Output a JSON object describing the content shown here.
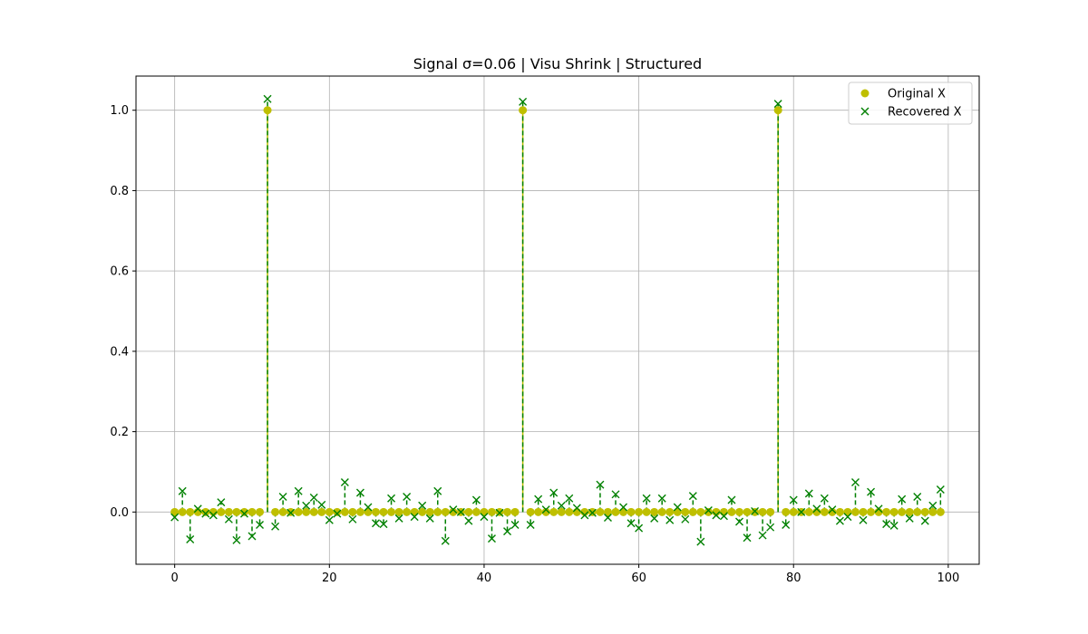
{
  "chart_data": {
    "type": "scatter",
    "title": "Signal σ=0.06 | Visu Shrink | Structured",
    "xlabel": "",
    "ylabel": "",
    "xlim": [
      -5,
      104
    ],
    "ylim": [
      -0.13,
      1.085
    ],
    "x_ticks": [
      0,
      20,
      40,
      60,
      80,
      100
    ],
    "y_ticks": [
      0.0,
      0.2,
      0.4,
      0.6,
      0.8,
      1.0
    ],
    "x_tick_labels": [
      "0",
      "20",
      "40",
      "60",
      "80",
      "100"
    ],
    "y_tick_labels": [
      "0.0",
      "0.2",
      "0.4",
      "0.6",
      "0.8",
      "1.0"
    ],
    "grid": true,
    "legend_position": "top-right",
    "x": [
      0,
      1,
      2,
      3,
      4,
      5,
      6,
      7,
      8,
      9,
      10,
      11,
      12,
      13,
      14,
      15,
      16,
      17,
      18,
      19,
      20,
      21,
      22,
      23,
      24,
      25,
      26,
      27,
      28,
      29,
      30,
      31,
      32,
      33,
      34,
      35,
      36,
      37,
      38,
      39,
      40,
      41,
      42,
      43,
      44,
      45,
      46,
      47,
      48,
      49,
      50,
      51,
      52,
      53,
      54,
      55,
      56,
      57,
      58,
      59,
      60,
      61,
      62,
      63,
      64,
      65,
      66,
      67,
      68,
      69,
      70,
      71,
      72,
      73,
      74,
      75,
      76,
      77,
      78,
      79,
      80,
      81,
      82,
      83,
      84,
      85,
      86,
      87,
      88,
      89,
      90,
      91,
      92,
      93,
      94,
      95,
      96,
      97,
      98,
      99
    ],
    "series": [
      {
        "name": "Original X",
        "color": "#bfbf00",
        "marker": "circle",
        "values": [
          0,
          0,
          0,
          0,
          0,
          0,
          0,
          0,
          0,
          0,
          0,
          0,
          1,
          0,
          0,
          0,
          0,
          0,
          0,
          0,
          0,
          0,
          0,
          0,
          0,
          0,
          0,
          0,
          0,
          0,
          0,
          0,
          0,
          0,
          0,
          0,
          0,
          0,
          0,
          0,
          0,
          0,
          0,
          0,
          0,
          1,
          0,
          0,
          0,
          0,
          0,
          0,
          0,
          0,
          0,
          0,
          0,
          0,
          0,
          0,
          0,
          0,
          0,
          0,
          0,
          0,
          0,
          0,
          0,
          0,
          0,
          0,
          0,
          0,
          0,
          0,
          0,
          0,
          1,
          0,
          0,
          0,
          0,
          0,
          0,
          0,
          0,
          0,
          0,
          0,
          0,
          0,
          0,
          0,
          0,
          0,
          0,
          0,
          0,
          0
        ]
      },
      {
        "name": "Recovered X",
        "color": "#008000",
        "marker": "x",
        "values": [
          -0.013,
          0.052,
          -0.068,
          0.008,
          -0.004,
          -0.008,
          0.024,
          -0.018,
          -0.07,
          -0.004,
          -0.06,
          -0.032,
          1.028,
          -0.036,
          0.038,
          -0.002,
          0.052,
          0.016,
          0.036,
          0.018,
          -0.02,
          -0.004,
          0.074,
          -0.018,
          0.048,
          0.012,
          -0.028,
          -0.03,
          0.034,
          -0.016,
          0.038,
          -0.012,
          0.016,
          -0.016,
          0.052,
          -0.072,
          0.006,
          0.0,
          -0.022,
          0.03,
          -0.012,
          -0.066,
          -0.002,
          -0.048,
          -0.032,
          1.021,
          -0.032,
          0.032,
          0.006,
          0.048,
          0.016,
          0.034,
          0.01,
          -0.008,
          -0.002,
          0.068,
          -0.014,
          0.044,
          0.012,
          -0.028,
          -0.04,
          0.034,
          -0.016,
          0.034,
          -0.02,
          0.012,
          -0.018,
          0.04,
          -0.074,
          0.004,
          -0.008,
          -0.01,
          0.03,
          -0.024,
          -0.064,
          0.002,
          -0.058,
          -0.038,
          1.016,
          -0.032,
          0.03,
          0.0,
          0.046,
          0.008,
          0.034,
          0.006,
          -0.022,
          -0.012,
          0.074,
          -0.02,
          0.05,
          0.008,
          -0.03,
          -0.034,
          0.032,
          -0.016,
          0.038,
          -0.022,
          0.016,
          0.056
        ]
      }
    ]
  }
}
